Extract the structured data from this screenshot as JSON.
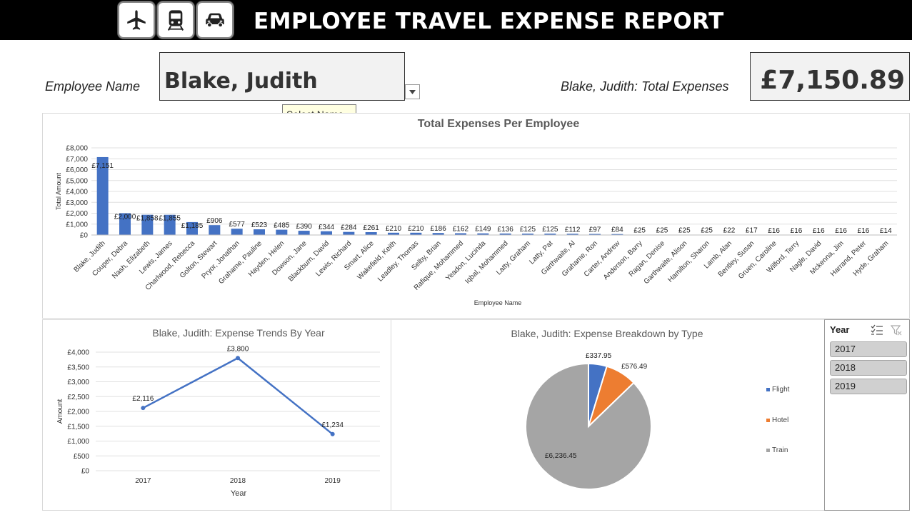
{
  "header": {
    "title": "EMPLOYEE TRAVEL EXPENSE REPORT",
    "icons": [
      "airplane-icon",
      "train-icon",
      "car-icon"
    ]
  },
  "selector": {
    "label": "Employee Name",
    "value": "Blake, Judith",
    "tooltip": "Select Name..."
  },
  "total": {
    "label": "Blake, Judith: Total Expenses",
    "value": "£7,150.89"
  },
  "slicer": {
    "title": "Year",
    "items": [
      "2017",
      "2018",
      "2019"
    ]
  },
  "chart_data": [
    {
      "type": "bar",
      "title": "Total Expenses Per Employee",
      "xlabel": "Employee Name",
      "ylabel": "Total Amount",
      "ylim": [
        0,
        8000
      ],
      "yticks": [
        "£0",
        "£1,000",
        "£2,000",
        "£3,000",
        "£4,000",
        "£5,000",
        "£6,000",
        "£7,000",
        "£8,000"
      ],
      "color": "#4472c4",
      "categories": [
        "Blake, Judith",
        "Couper, Debra",
        "Nash, Elizabeth",
        "Lewis, James",
        "Charlwood, Rebecca",
        "Golton, Stewart",
        "Pryor, Jonathan",
        "Grahame, Pauline",
        "Hayden, Helen",
        "Dowson, Jane",
        "Blackburn, David",
        "Lewis, Richard",
        "Smart, Alice",
        "Wakefield, Keith",
        "Leadley, Thomas",
        "Selby, Brian",
        "Rafique, Mohammed",
        "Yeadon, Lucinda",
        "Iqbal, Mohammed",
        "Latty, Graham",
        "Latty, Pat",
        "Garthwaite, Al",
        "Grahame, Ron",
        "Carter, Andrew",
        "Anderson, Barry",
        "Ragan, Denise",
        "Garthwaite, Alison",
        "Hamilton, Sharon",
        "Lamb, Alan",
        "Bentley, Susan",
        "Gruen, Caroline",
        "Wilford, Terry",
        "Nagle, David",
        "Mckenna, Jim",
        "Harrand, Peter",
        "Hyde, Graham"
      ],
      "values": [
        7151,
        2000,
        1858,
        1855,
        1185,
        906,
        577,
        523,
        485,
        390,
        344,
        284,
        261,
        210,
        210,
        186,
        162,
        149,
        136,
        125,
        125,
        112,
        97,
        84,
        25,
        25,
        25,
        25,
        22,
        17,
        16,
        16,
        16,
        16,
        16,
        14
      ],
      "labels": [
        "£7,151",
        "£2,000",
        "£1,858",
        "£1,855",
        "£1,185",
        "£906",
        "£577",
        "£523",
        "£485",
        "£390",
        "£344",
        "£284",
        "£261",
        "£210",
        "£210",
        "£186",
        "£162",
        "£149",
        "£136",
        "£125",
        "£125",
        "£112",
        "£97",
        "£84",
        "£25",
        "£25",
        "£25",
        "£25",
        "£22",
        "£17",
        "£16",
        "£16",
        "£16",
        "£16",
        "£16",
        "£14"
      ]
    },
    {
      "type": "line",
      "title": "Blake, Judith: Expense Trends By Year",
      "xlabel": "Year",
      "ylabel": "Amount",
      "ylim": [
        0,
        4000
      ],
      "yticks": [
        "£0",
        "£500",
        "£1,000",
        "£1,500",
        "£2,000",
        "£2,500",
        "£3,000",
        "£3,500",
        "£4,000"
      ],
      "color": "#4472c4",
      "categories": [
        "2017",
        "2018",
        "2019"
      ],
      "values": [
        2116,
        3800,
        1234
      ],
      "labels": [
        "£2,116",
        "£3,800",
        "£1,234"
      ]
    },
    {
      "type": "pie",
      "title": "Blake, Judith: Expense Breakdown by Type",
      "legend": "right",
      "slices": [
        {
          "name": "Flight",
          "value": 337.95,
          "label": "£337.95",
          "color": "#4472c4"
        },
        {
          "name": "Hotel",
          "value": 576.49,
          "label": "£576.49",
          "color": "#ed7d31"
        },
        {
          "name": "Train",
          "value": 6236.45,
          "label": "£6,236.45",
          "color": "#a5a5a5"
        }
      ]
    }
  ]
}
